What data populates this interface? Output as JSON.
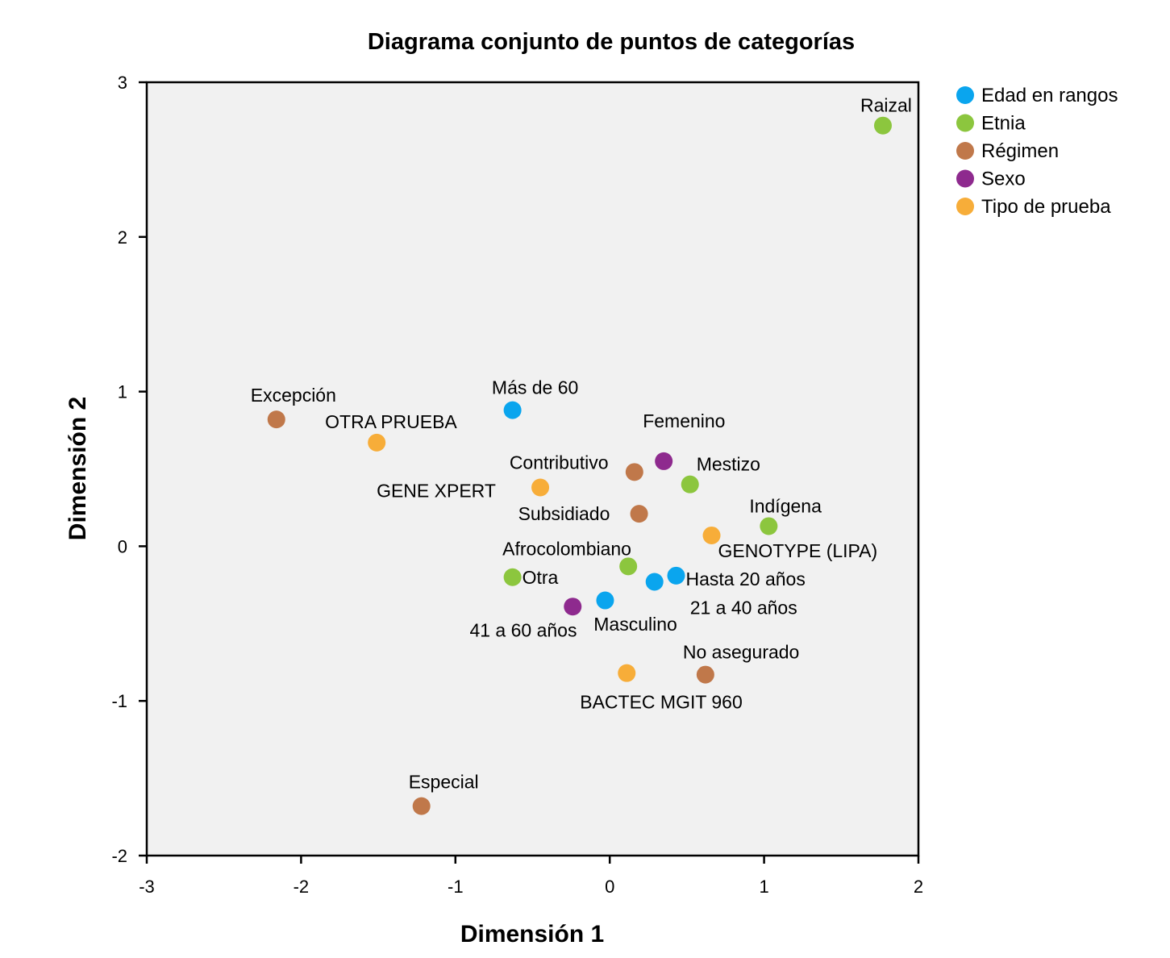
{
  "chart_data": {
    "type": "scatter",
    "title": "Diagrama conjunto de puntos de categorías",
    "xlabel": "Dimensión 1",
    "ylabel": "Dimensión 2",
    "xlim": [
      -3,
      2
    ],
    "ylim": [
      -2,
      3
    ],
    "xticks": [
      "-3",
      "-2",
      "-1",
      "0",
      "1",
      "2"
    ],
    "yticks": [
      "-2",
      "-1",
      "0",
      "1",
      "2",
      "3"
    ],
    "grid": false,
    "legend_position": "right",
    "series": [
      {
        "name": "Edad en rangos",
        "color": "#0aa5ee",
        "points": [
          {
            "label": "Más de 60",
            "x": -0.63,
            "y": 0.88
          },
          {
            "label": "Hasta 20 años",
            "x": 0.43,
            "y": -0.19
          },
          {
            "label": "21 a 40 años",
            "x": 0.29,
            "y": -0.23
          },
          {
            "label": "41 a 60 años",
            "x": -0.03,
            "y": -0.35
          }
        ]
      },
      {
        "name": "Etnia",
        "color": "#8cc63e",
        "points": [
          {
            "label": "Raizal",
            "x": 1.77,
            "y": 2.72
          },
          {
            "label": "Mestizo",
            "x": 0.52,
            "y": 0.4
          },
          {
            "label": "Indígena",
            "x": 1.03,
            "y": 0.13
          },
          {
            "label": "Afrocolombiano",
            "x": 0.12,
            "y": -0.13
          },
          {
            "label": "Otra",
            "x": -0.63,
            "y": -0.2
          }
        ]
      },
      {
        "name": "Régimen",
        "color": "#c0784a",
        "points": [
          {
            "label": "Excepción",
            "x": -2.16,
            "y": 0.82
          },
          {
            "label": "Contributivo",
            "x": 0.16,
            "y": 0.48
          },
          {
            "label": "Subsidiado",
            "x": 0.19,
            "y": 0.21
          },
          {
            "label": "No asegurado",
            "x": 0.62,
            "y": -0.83
          },
          {
            "label": "Especial",
            "x": -1.22,
            "y": -1.68
          }
        ]
      },
      {
        "name": "Sexo",
        "color": "#8e2a8e",
        "points": [
          {
            "label": "Femenino",
            "x": 0.35,
            "y": 0.55
          },
          {
            "label": "Masculino",
            "x": -0.24,
            "y": -0.39
          }
        ]
      },
      {
        "name": "Tipo de prueba",
        "color": "#f7ad39",
        "points": [
          {
            "label": "OTRA PRUEBA",
            "x": -1.51,
            "y": 0.67
          },
          {
            "label": "GENE XPERT",
            "x": -0.45,
            "y": 0.38
          },
          {
            "label": "GENOTYPE (LIPA)",
            "x": 0.66,
            "y": 0.07
          },
          {
            "label": "BACTEC MGIT 960",
            "x": 0.11,
            "y": -0.82
          }
        ]
      }
    ]
  }
}
